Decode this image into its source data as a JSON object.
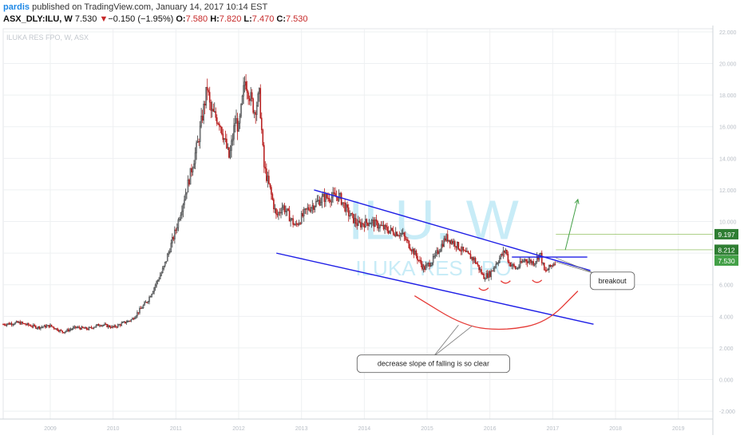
{
  "header": {
    "author": "pardis",
    "published": "published on TradingView.com, January 14, 2017 10:14 EST",
    "symbol": "ASX_DLY:ILU, W",
    "last": "7.530",
    "change": "−0.150 (−1.95%)",
    "o_label": "O:",
    "o": "7.580",
    "h_label": "H:",
    "h": "7.820",
    "l_label": "L:",
    "l": "7.470",
    "c_label": "C:",
    "c": "7.530"
  },
  "colors": {
    "candle_up": "#3a3a3a",
    "candle_down": "#b71c1c",
    "trendline": "#1e1ee6",
    "arc": "#e53935",
    "arrow": "#43a047",
    "watermark": "#c8ecf7",
    "grid": "#eef0f2"
  },
  "chart_data": {
    "type": "candlestick",
    "symbol": "ILU",
    "pane_title": "ILUKA RES FPO, W, ASX",
    "watermark_big": "ILU, W",
    "watermark_small": "ILUKA RES FPO",
    "x_ticks": [
      "2009",
      "2010",
      "2011",
      "2012",
      "2013",
      "2014",
      "2015",
      "2016",
      "2017",
      "2018",
      "2019"
    ],
    "y_ticks": [
      "22.000",
      "20.000",
      "18.000",
      "16.000",
      "14.000",
      "12.000",
      "10.000",
      "8.000",
      "6.000",
      "4.000",
      "2.000",
      "0.000",
      "-2.000"
    ],
    "xlim": [
      2008.25,
      2019.55
    ],
    "ylim": [
      -2.5,
      22.2
    ],
    "price_path": [
      [
        2008.25,
        3.5
      ],
      [
        2008.5,
        3.6
      ],
      [
        2008.8,
        3.3
      ],
      [
        2009.0,
        3.4
      ],
      [
        2009.2,
        3.0
      ],
      [
        2009.4,
        3.3
      ],
      [
        2009.6,
        3.2
      ],
      [
        2009.8,
        3.5
      ],
      [
        2010.0,
        3.3
      ],
      [
        2010.3,
        3.8
      ],
      [
        2010.55,
        5.0
      ],
      [
        2010.8,
        7.0
      ],
      [
        2011.0,
        9.5
      ],
      [
        2011.2,
        12.5
      ],
      [
        2011.35,
        15.0
      ],
      [
        2011.5,
        18.5
      ],
      [
        2011.55,
        17.0
      ],
      [
        2011.7,
        16.3
      ],
      [
        2011.85,
        14.0
      ],
      [
        2011.95,
        16.5
      ],
      [
        2012.0,
        15.8
      ],
      [
        2012.1,
        19.0
      ],
      [
        2012.25,
        17.0
      ],
      [
        2012.33,
        18.0
      ],
      [
        2012.4,
        13.5
      ],
      [
        2012.5,
        12.0
      ],
      [
        2012.6,
        10.3
      ],
      [
        2012.7,
        11.0
      ],
      [
        2012.9,
        9.7
      ],
      [
        2013.1,
        10.8
      ],
      [
        2013.35,
        11.5
      ],
      [
        2013.6,
        11.6
      ],
      [
        2013.75,
        10.5
      ],
      [
        2013.9,
        9.8
      ],
      [
        2014.1,
        10.0
      ],
      [
        2014.35,
        9.5
      ],
      [
        2014.6,
        9.2
      ],
      [
        2014.8,
        8.0
      ],
      [
        2014.95,
        7.0
      ],
      [
        2015.1,
        7.6
      ],
      [
        2015.3,
        9.0
      ],
      [
        2015.45,
        8.6
      ],
      [
        2015.6,
        8.0
      ],
      [
        2015.75,
        7.6
      ],
      [
        2015.9,
        6.5
      ],
      [
        2016.0,
        6.7
      ],
      [
        2016.12,
        7.5
      ],
      [
        2016.25,
        8.2
      ],
      [
        2016.3,
        7.4
      ],
      [
        2016.42,
        7.0
      ],
      [
        2016.55,
        7.6
      ],
      [
        2016.7,
        7.4
      ],
      [
        2016.8,
        8.0
      ],
      [
        2016.87,
        6.8
      ],
      [
        2016.93,
        7.0
      ],
      [
        2017.05,
        7.53
      ]
    ],
    "price_labels": [
      {
        "text": "9.197",
        "value": 9.197,
        "color": "#2e7d32"
      },
      {
        "text": "8.212",
        "value": 8.212,
        "color": "#2e7d32"
      },
      {
        "text": "7.530",
        "value": 7.53,
        "color": "#43a047"
      }
    ],
    "h_lines": [
      {
        "value": 9.197
      },
      {
        "value": 8.212
      }
    ],
    "drawings": {
      "upper_trend": [
        [
          2013.2,
          12.0
        ],
        [
          2017.6,
          6.9
        ]
      ],
      "lower_trend": [
        [
          2012.6,
          8.0
        ],
        [
          2017.65,
          3.5
        ]
      ],
      "neck": [
        [
          2016.35,
          7.75
        ],
        [
          2017.55,
          7.75
        ]
      ],
      "target_arrow": [
        [
          2017.2,
          8.2
        ],
        [
          2017.4,
          11.4
        ]
      ],
      "arc_points": [
        [
          2014.8,
          5.3
        ],
        [
          2015.6,
          3.35
        ],
        [
          2016.25,
          3.1
        ],
        [
          2016.9,
          3.6
        ],
        [
          2017.4,
          5.6
        ]
      ],
      "bottom_markers": [
        [
          2015.9,
          5.8
        ],
        [
          2016.25,
          6.25
        ],
        [
          2016.75,
          6.3
        ]
      ]
    },
    "annotations": [
      {
        "text": "breakout",
        "x": 2017.95,
        "y": 6.25,
        "pointers": [
          [
            2017.05,
            7.7
          ],
          [
            2017.05,
            7.45
          ]
        ]
      },
      {
        "text": "decrease slope of falling is so clear",
        "x": 2015.1,
        "y": 1.0,
        "pointers": [
          [
            2015.5,
            3.45
          ],
          [
            2015.72,
            3.4
          ]
        ]
      }
    ]
  }
}
